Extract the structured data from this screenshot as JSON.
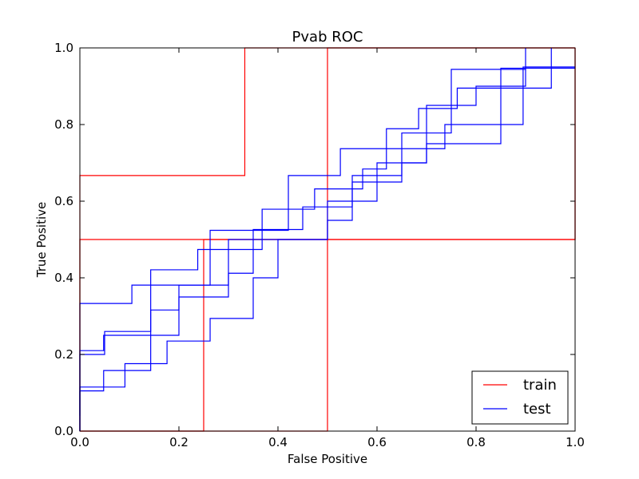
{
  "chart_data": {
    "type": "line",
    "title": "Pvab ROC",
    "xlabel": "False Positive",
    "ylabel": "True Positive",
    "xlim": [
      0.0,
      1.0
    ],
    "ylim": [
      0.0,
      1.0
    ],
    "x_ticks": [
      "0.0",
      "0.2",
      "0.4",
      "0.6",
      "0.8",
      "1.0"
    ],
    "y_ticks": [
      "0.0",
      "0.2",
      "0.4",
      "0.6",
      "0.8",
      "1.0"
    ],
    "grid": false,
    "legend_position": "lower-right",
    "legend": [
      {
        "label": "train",
        "color": "#ff0000"
      },
      {
        "label": "test",
        "color": "#0000ff"
      }
    ],
    "series": [
      {
        "name": "train",
        "color": "#ff0000",
        "points": [
          [
            0,
            0
          ],
          [
            0,
            0.667
          ],
          [
            0.333,
            0.667
          ],
          [
            0.333,
            1.0
          ],
          [
            1.0,
            1.0
          ]
        ]
      },
      {
        "name": "train",
        "color": "#ff0000",
        "points": [
          [
            0,
            0
          ],
          [
            0.25,
            0
          ],
          [
            0.25,
            0.5
          ],
          [
            1.0,
            0.5
          ],
          [
            1.0,
            1.0
          ]
        ]
      },
      {
        "name": "train",
        "color": "#ff0000",
        "points": [
          [
            0,
            0
          ],
          [
            0,
            0.5
          ],
          [
            0.5,
            0.5
          ],
          [
            0.5,
            1.0
          ],
          [
            1.0,
            1.0
          ]
        ]
      },
      {
        "name": "train",
        "color": "#ff0000",
        "points": [
          [
            0,
            0
          ],
          [
            0.5,
            0
          ],
          [
            0.5,
            0.5
          ],
          [
            1.0,
            0.5
          ],
          [
            1.0,
            1.0
          ]
        ]
      },
      {
        "name": "test",
        "color": "#0000ff",
        "points": [
          [
            0,
            0
          ],
          [
            0,
            0.333
          ],
          [
            0.105,
            0.333
          ],
          [
            0.105,
            0.381
          ],
          [
            0.263,
            0.381
          ],
          [
            0.263,
            0.524
          ],
          [
            0.421,
            0.524
          ],
          [
            0.421,
            0.667
          ],
          [
            0.526,
            0.667
          ],
          [
            0.526,
            0.737
          ],
          [
            0.737,
            0.737
          ],
          [
            0.737,
            0.8
          ],
          [
            0.895,
            0.8
          ],
          [
            0.895,
            0.95
          ],
          [
            1.0,
            0.95
          ]
        ]
      },
      {
        "name": "test",
        "color": "#0000ff",
        "points": [
          [
            0,
            0.04
          ],
          [
            0,
            0.2
          ],
          [
            0.05,
            0.2
          ],
          [
            0.05,
            0.26
          ],
          [
            0.143,
            0.26
          ],
          [
            0.143,
            0.421
          ],
          [
            0.238,
            0.421
          ],
          [
            0.238,
            0.474
          ],
          [
            0.368,
            0.474
          ],
          [
            0.368,
            0.579
          ],
          [
            0.474,
            0.579
          ],
          [
            0.474,
            0.632
          ],
          [
            0.571,
            0.632
          ],
          [
            0.571,
            0.684
          ],
          [
            0.619,
            0.684
          ],
          [
            0.619,
            0.789
          ],
          [
            0.684,
            0.789
          ],
          [
            0.684,
            0.842
          ],
          [
            0.762,
            0.842
          ],
          [
            0.762,
            0.895
          ],
          [
            0.952,
            0.895
          ],
          [
            0.952,
            1.0
          ]
        ]
      },
      {
        "name": "test",
        "color": "#0000ff",
        "points": [
          [
            0,
            0
          ],
          [
            0,
            0.21
          ],
          [
            0.048,
            0.21
          ],
          [
            0.048,
            0.25
          ],
          [
            0.2,
            0.25
          ],
          [
            0.2,
            0.35
          ],
          [
            0.3,
            0.35
          ],
          [
            0.3,
            0.5
          ],
          [
            0.5,
            0.5
          ],
          [
            0.5,
            0.55
          ],
          [
            0.55,
            0.55
          ],
          [
            0.55,
            0.65
          ],
          [
            0.65,
            0.65
          ],
          [
            0.65,
            0.7
          ],
          [
            0.7,
            0.7
          ],
          [
            0.7,
            0.75
          ],
          [
            0.85,
            0.75
          ],
          [
            0.85,
            0.947
          ],
          [
            1.0,
            0.947
          ]
        ]
      },
      {
        "name": "test",
        "color": "#0000ff",
        "points": [
          [
            0,
            0
          ],
          [
            0,
            0.105
          ],
          [
            0.048,
            0.105
          ],
          [
            0.048,
            0.158
          ],
          [
            0.143,
            0.158
          ],
          [
            0.143,
            0.316
          ],
          [
            0.2,
            0.316
          ],
          [
            0.2,
            0.381
          ],
          [
            0.3,
            0.381
          ],
          [
            0.3,
            0.412
          ],
          [
            0.35,
            0.412
          ],
          [
            0.35,
            0.526
          ],
          [
            0.45,
            0.526
          ],
          [
            0.45,
            0.585
          ],
          [
            0.55,
            0.585
          ],
          [
            0.55,
            0.667
          ],
          [
            0.65,
            0.667
          ],
          [
            0.65,
            0.778
          ],
          [
            0.75,
            0.778
          ],
          [
            0.75,
            0.944
          ],
          [
            0.9,
            0.944
          ],
          [
            0.9,
            1.0
          ]
        ]
      },
      {
        "name": "test",
        "color": "#0000ff",
        "points": [
          [
            0,
            0
          ],
          [
            0,
            0.115
          ],
          [
            0.091,
            0.115
          ],
          [
            0.091,
            0.176
          ],
          [
            0.176,
            0.176
          ],
          [
            0.176,
            0.235
          ],
          [
            0.263,
            0.235
          ],
          [
            0.263,
            0.294
          ],
          [
            0.35,
            0.294
          ],
          [
            0.35,
            0.4
          ],
          [
            0.4,
            0.4
          ],
          [
            0.4,
            0.5
          ],
          [
            0.5,
            0.5
          ],
          [
            0.5,
            0.6
          ],
          [
            0.6,
            0.6
          ],
          [
            0.6,
            0.7
          ],
          [
            0.7,
            0.7
          ],
          [
            0.7,
            0.85
          ],
          [
            0.8,
            0.85
          ],
          [
            0.8,
            0.9
          ],
          [
            0.9,
            0.9
          ],
          [
            0.9,
            0.95
          ],
          [
            1.0,
            0.95
          ]
        ]
      }
    ]
  }
}
